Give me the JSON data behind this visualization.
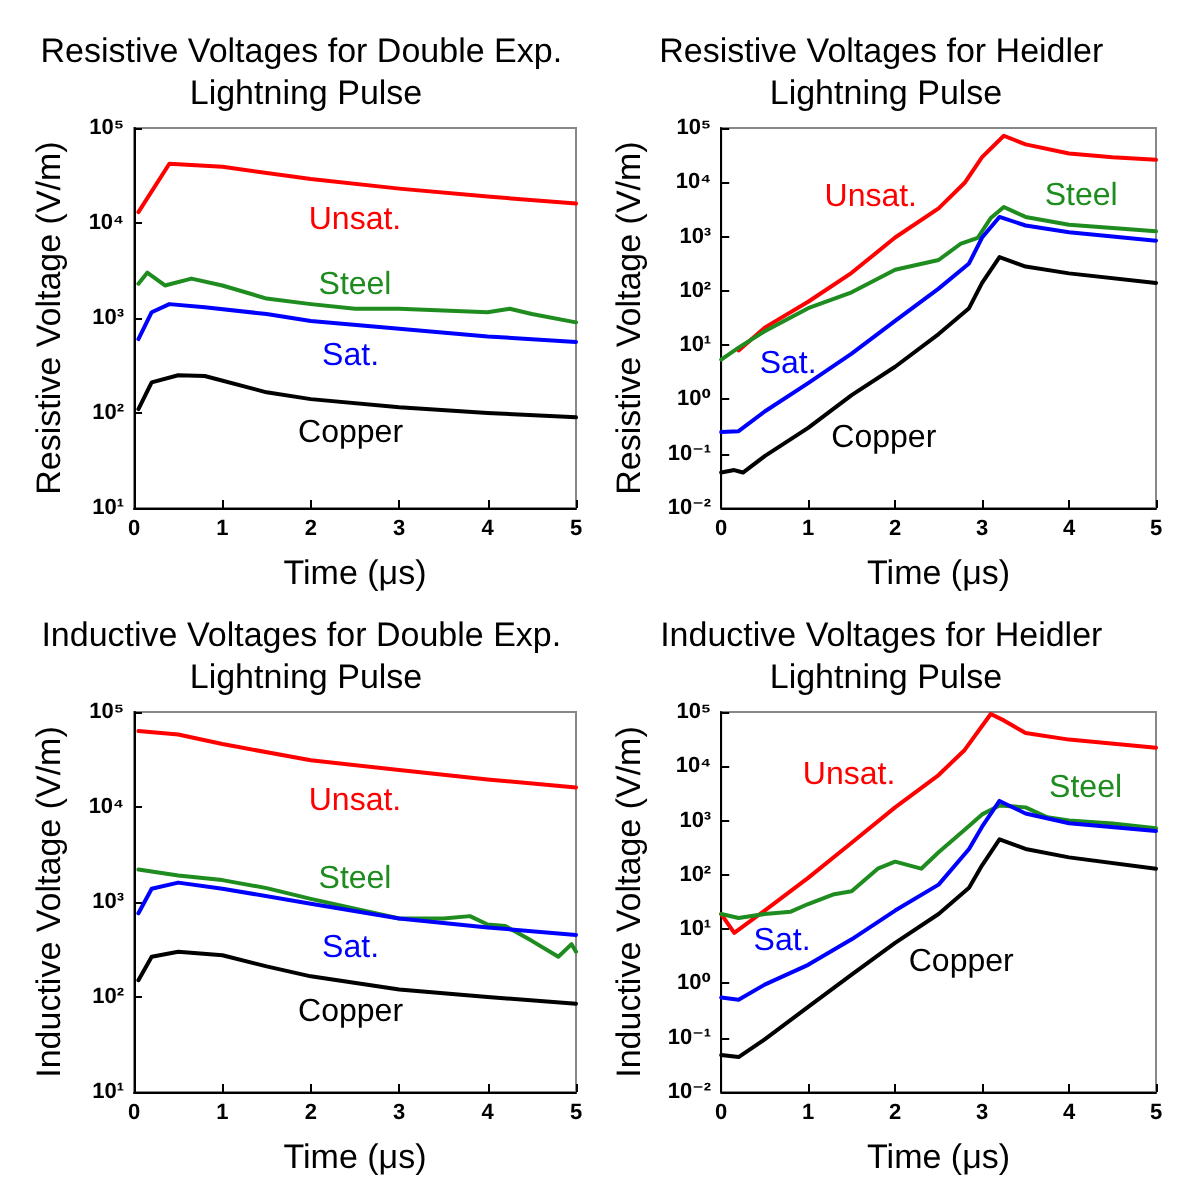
{
  "chart_data": [
    {
      "type": "line",
      "title": "Resistive Voltages for Double Exp. Lightning Pulse",
      "xlabel": "Time (μs)",
      "ylabel": "Resistive Voltage (V/m)",
      "log": "y",
      "xlim": [
        0,
        5
      ],
      "xticks": [
        0,
        1,
        2,
        3,
        4,
        5
      ],
      "ylim": [
        10,
        100000
      ],
      "yticks": [
        {
          "value": 10,
          "label": "10¹"
        },
        {
          "value": 100,
          "label": "10²"
        },
        {
          "value": 1000,
          "label": "10³"
        },
        {
          "value": 10000,
          "label": "10⁴"
        },
        {
          "value": 100000,
          "label": "10⁵"
        }
      ],
      "series": [
        {
          "name": "Unsat.",
          "color": "#ff0000",
          "x": [
            0.05,
            0.4,
            1,
            2,
            3,
            4,
            5
          ],
          "values": [
            13000,
            42000,
            39000,
            29000,
            23000,
            19000,
            16000
          ]
        },
        {
          "name": "Steel",
          "color": "#1f8c1f",
          "x": [
            0.05,
            0.15,
            0.35,
            0.65,
            1,
            1.5,
            2,
            2.5,
            3,
            3.5,
            4,
            4.25,
            4.5,
            5
          ],
          "values": [
            2300,
            3000,
            2200,
            2600,
            2200,
            1600,
            1400,
            1250,
            1250,
            1200,
            1150,
            1250,
            1100,
            900
          ]
        },
        {
          "name": "Sat.",
          "color": "#0000ff",
          "x": [
            0.05,
            0.2,
            0.4,
            0.8,
            1.5,
            2,
            3,
            4,
            5
          ],
          "values": [
            600,
            1150,
            1400,
            1300,
            1100,
            930,
            770,
            640,
            560
          ]
        },
        {
          "name": "Copper",
          "color": "#000000",
          "x": [
            0.05,
            0.2,
            0.5,
            0.8,
            1.5,
            2,
            3,
            4,
            5
          ],
          "values": [
            110,
            210,
            250,
            245,
            165,
            140,
            115,
            100,
            90
          ]
        }
      ]
    },
    {
      "type": "line",
      "title": "Resistive Voltages for Heidler Lightning Pulse",
      "xlabel": "Time (μs)",
      "ylabel": "Resistive Voltage (V/m)",
      "log": "y",
      "xlim": [
        0,
        5
      ],
      "xticks": [
        0,
        1,
        2,
        3,
        4,
        5
      ],
      "ylim": [
        0.01,
        100000
      ],
      "yticks": [
        {
          "value": 0.01,
          "label": "10⁻²"
        },
        {
          "value": 0.1,
          "label": "10⁻¹"
        },
        {
          "value": 1,
          "label": "10⁰"
        },
        {
          "value": 10,
          "label": "10¹"
        },
        {
          "value": 100,
          "label": "10²"
        },
        {
          "value": 1000,
          "label": "10³"
        },
        {
          "value": 10000,
          "label": "10⁴"
        },
        {
          "value": 100000,
          "label": "10⁵"
        }
      ],
      "series": [
        {
          "name": "Unsat.",
          "color": "#ff0000",
          "x": [
            0.2,
            0.5,
            1,
            1.5,
            2,
            2.5,
            2.8,
            3,
            3.25,
            3.5,
            4,
            4.5,
            5
          ],
          "values": [
            8,
            21,
            63,
            215,
            960,
            3300,
            9800,
            29000,
            72000,
            50000,
            34000,
            29000,
            26000
          ]
        },
        {
          "name": "Steel",
          "color": "#1f8c1f",
          "x": [
            0,
            0.2,
            0.5,
            1,
            1.5,
            2,
            2.5,
            2.75,
            2.95,
            3.1,
            3.25,
            3.5,
            4,
            5
          ],
          "values": [
            5.4,
            9,
            18,
            48,
            94,
            245,
            370,
            730,
            950,
            2200,
            3500,
            2300,
            1650,
            1250
          ]
        },
        {
          "name": "Sat.",
          "color": "#0000ff",
          "x": [
            0,
            0.2,
            0.5,
            1,
            1.5,
            2,
            2.5,
            2.85,
            3,
            3.2,
            3.5,
            4,
            5
          ],
          "values": [
            0.25,
            0.26,
            0.6,
            2,
            7,
            28,
            110,
            320,
            960,
            2300,
            1600,
            1200,
            840
          ]
        },
        {
          "name": "Copper",
          "color": "#000000",
          "x": [
            0,
            0.15,
            0.25,
            0.5,
            1,
            1.5,
            2,
            2.5,
            2.85,
            3,
            3.2,
            3.5,
            4,
            5
          ],
          "values": [
            0.045,
            0.05,
            0.045,
            0.09,
            0.3,
            1.2,
            4,
            16,
            48,
            140,
            420,
            280,
            210,
            140
          ]
        }
      ]
    },
    {
      "type": "line",
      "title": "Inductive Voltages for Double Exp. Lightning Pulse",
      "xlabel": "Time (μs)",
      "ylabel": "Inductive Voltage (V/m)",
      "log": "y",
      "xlim": [
        0,
        5
      ],
      "xticks": [
        0,
        1,
        2,
        3,
        4,
        5
      ],
      "ylim": [
        10,
        100000
      ],
      "yticks": [
        {
          "value": 10,
          "label": "10¹"
        },
        {
          "value": 100,
          "label": "10²"
        },
        {
          "value": 1000,
          "label": "10³"
        },
        {
          "value": 10000,
          "label": "10⁴"
        },
        {
          "value": 100000,
          "label": "10⁵"
        }
      ],
      "series": [
        {
          "name": "Unsat.",
          "color": "#ff0000",
          "x": [
            0.05,
            0.5,
            1,
            2,
            3,
            4,
            5
          ],
          "values": [
            63000,
            58000,
            46000,
            31000,
            24500,
            19500,
            16000
          ]
        },
        {
          "name": "Steel",
          "color": "#1f8c1f",
          "x": [
            0.05,
            0.5,
            1,
            1.5,
            2,
            2.5,
            3,
            3.5,
            3.8,
            4,
            4.2,
            4.5,
            4.8,
            4.95,
            5
          ],
          "values": [
            2200,
            1900,
            1700,
            1400,
            1080,
            850,
            670,
            670,
            710,
            580,
            560,
            390,
            265,
            360,
            300
          ]
        },
        {
          "name": "Sat.",
          "color": "#0000ff",
          "x": [
            0.05,
            0.2,
            0.5,
            1,
            2,
            3,
            4,
            5
          ],
          "values": [
            760,
            1380,
            1600,
            1380,
            960,
            670,
            540,
            450
          ]
        },
        {
          "name": "Copper",
          "color": "#000000",
          "x": [
            0.05,
            0.2,
            0.5,
            1,
            1.5,
            2,
            3,
            4,
            5
          ],
          "values": [
            150,
            265,
            300,
            275,
            210,
            165,
            120,
            100,
            85
          ]
        }
      ]
    },
    {
      "type": "line",
      "title": "Inductive Voltages for Heidler Lightning Pulse",
      "xlabel": "Time (μs)",
      "ylabel": "Inductive Voltage (V/m)",
      "log": "y",
      "xlim": [
        0,
        5
      ],
      "xticks": [
        0,
        1,
        2,
        3,
        4,
        5
      ],
      "ylim": [
        0.01,
        100000
      ],
      "yticks": [
        {
          "value": 0.01,
          "label": "10⁻²"
        },
        {
          "value": 0.1,
          "label": "10⁻¹"
        },
        {
          "value": 1,
          "label": "10⁰"
        },
        {
          "value": 10,
          "label": "10¹"
        },
        {
          "value": 100,
          "label": "10²"
        },
        {
          "value": 1000,
          "label": "10³"
        },
        {
          "value": 10000,
          "label": "10⁴"
        },
        {
          "value": 100000,
          "label": "10⁵"
        }
      ],
      "series": [
        {
          "name": "Unsat.",
          "color": "#ff0000",
          "x": [
            0,
            0.15,
            0.5,
            1,
            1.5,
            2,
            2.5,
            2.8,
            3.1,
            3.25,
            3.5,
            4,
            5
          ],
          "values": [
            19,
            8.5,
            22,
            88,
            390,
            1750,
            6900,
            20000,
            92000,
            70000,
            41000,
            31000,
            22000
          ]
        },
        {
          "name": "Steel",
          "color": "#1f8c1f",
          "x": [
            0,
            0.2,
            0.5,
            0.8,
            1,
            1.3,
            1.5,
            1.8,
            2,
            2.3,
            2.5,
            2.8,
            3,
            3.2,
            3.5,
            3.75,
            4,
            4.5,
            5
          ],
          "values": [
            19,
            16,
            19,
            21,
            29,
            44,
            50,
            130,
            175,
            130,
            260,
            680,
            1300,
            1900,
            1750,
            1150,
            1000,
            880,
            720
          ]
        },
        {
          "name": "Sat.",
          "color": "#0000ff",
          "x": [
            0,
            0.2,
            0.5,
            1,
            1.5,
            2,
            2.5,
            2.85,
            3,
            3.2,
            3.5,
            4,
            5
          ],
          "values": [
            0.55,
            0.5,
            0.95,
            2.2,
            6.5,
            22,
            66,
            300,
            770,
            2300,
            1350,
            890,
            640
          ]
        },
        {
          "name": "Copper",
          "color": "#000000",
          "x": [
            0,
            0.2,
            0.5,
            1,
            1.5,
            2,
            2.5,
            2.85,
            3,
            3.2,
            3.5,
            4,
            5
          ],
          "values": [
            0.048,
            0.044,
            0.093,
            0.37,
            1.45,
            5.6,
            19,
            58,
            150,
            450,
            300,
            210,
            130
          ]
        }
      ]
    }
  ]
}
